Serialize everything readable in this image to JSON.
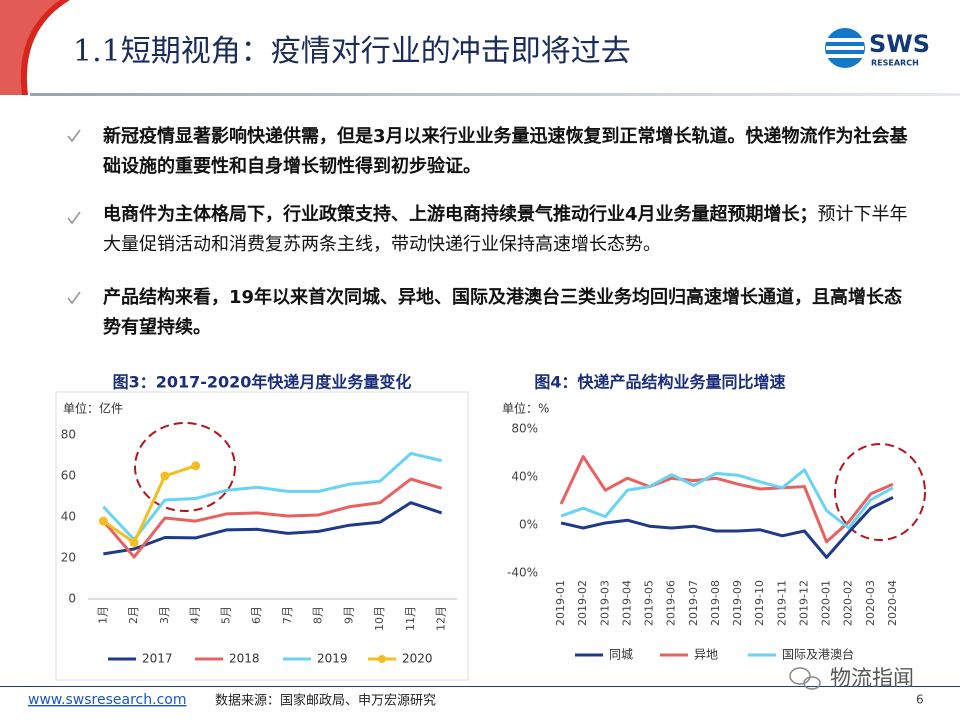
{
  "header": {
    "title": "1.1短期视角：疫情对行业的冲击即将过去",
    "logo": {
      "name": "SWS",
      "sub": "RESEARCH"
    }
  },
  "bullets": [
    {
      "bold": "新冠疫情显著影响快递供需，但是3月以来行业业务量迅速恢复到正常增长轨道。快递物流作为社会基础设施的重要性和自身增长韧性得到初步验证。"
    },
    {
      "bold": "电商件为主体格局下，行业政策支持、上游电商持续景气推动行业4月业务量超预期增长；",
      "normal": "预计下半年大量促销活动和消费复苏两条主线，带动快递行业保持高速增长态势。"
    },
    {
      "bold": "产品结构来看，19年以来首次同城、异地、国际及港澳台三类业务均回归高速增长通道，且高增长态势有望持续。"
    }
  ],
  "chart_data": [
    {
      "type": "line",
      "title": "图3：2017-2020年快递月度业务量变化",
      "unit": "单位：亿件",
      "categories": [
        "1月",
        "2月",
        "3月",
        "4月",
        "5月",
        "6月",
        "7月",
        "8月",
        "9月",
        "10月",
        "11月",
        "12月"
      ],
      "ylim": [
        0,
        80
      ],
      "yticks": [
        0,
        20,
        40,
        60,
        80
      ],
      "grid": false,
      "series": [
        {
          "name": "2017",
          "color": "#1f3a8a",
          "values": [
            22,
            24.4,
            30,
            29.8,
            33.7,
            34,
            32,
            33,
            36,
            37.5,
            47,
            42
          ]
        },
        {
          "name": "2018",
          "color": "#e8605f",
          "values": [
            38,
            20.5,
            39.5,
            38,
            41.5,
            42,
            40.5,
            41,
            45,
            47,
            58.5,
            54
          ]
        },
        {
          "name": "2019",
          "color": "#66d4f2",
          "values": [
            45,
            29,
            48.3,
            49,
            53,
            54.5,
            52.5,
            52.5,
            56,
            57.5,
            71,
            67.5
          ]
        },
        {
          "name": "2020",
          "color": "#f5bd1f",
          "markers": true,
          "values": [
            38,
            27.5,
            60,
            65,
            null,
            null,
            null,
            null,
            null,
            null,
            null,
            null
          ]
        }
      ]
    },
    {
      "type": "line",
      "title": "图4：快递产品结构业务量同比增速",
      "unit": "单位：%",
      "categories": [
        "2019-01",
        "2019-02",
        "2019-03",
        "2019-04",
        "2019-05",
        "2019-06",
        "2019-07",
        "2019-08",
        "2019-09",
        "2019-10",
        "2019-11",
        "2019-12",
        "2020-01",
        "2020-02",
        "2020-03",
        "2020-04"
      ],
      "ylim": [
        -40,
        80
      ],
      "yticks": [
        {
          "value": -40,
          "label": "-40%"
        },
        {
          "value": 0,
          "label": "0%"
        },
        {
          "value": 40,
          "label": "40%"
        },
        {
          "value": 80,
          "label": "80%"
        }
      ],
      "grid": false,
      "series": [
        {
          "name": "同城",
          "color": "#1f3a8a",
          "values": [
            1.7,
            -2.5,
            1.7,
            4,
            -1,
            -2.5,
            -1,
            -5,
            -5,
            -4,
            -9,
            -5,
            -27,
            -6,
            14,
            23
          ]
        },
        {
          "name": "异地",
          "color": "#e8605f",
          "values": [
            17.5,
            57,
            29,
            39,
            32,
            39,
            37,
            39,
            34,
            30,
            31,
            32,
            -14,
            2.5,
            26,
            34
          ]
        },
        {
          "name": "国际及港澳台",
          "color": "#66d4f2",
          "values": [
            7.5,
            14,
            7,
            29,
            32,
            42,
            33,
            43,
            41.5,
            36,
            31,
            46,
            12,
            -2.5,
            21,
            31
          ]
        }
      ]
    }
  ],
  "footer": {
    "site": "www.swsresearch.com",
    "source": "数据来源：国家邮政局、申万宏源研究",
    "page": "6",
    "watermark": "物流指闻"
  }
}
